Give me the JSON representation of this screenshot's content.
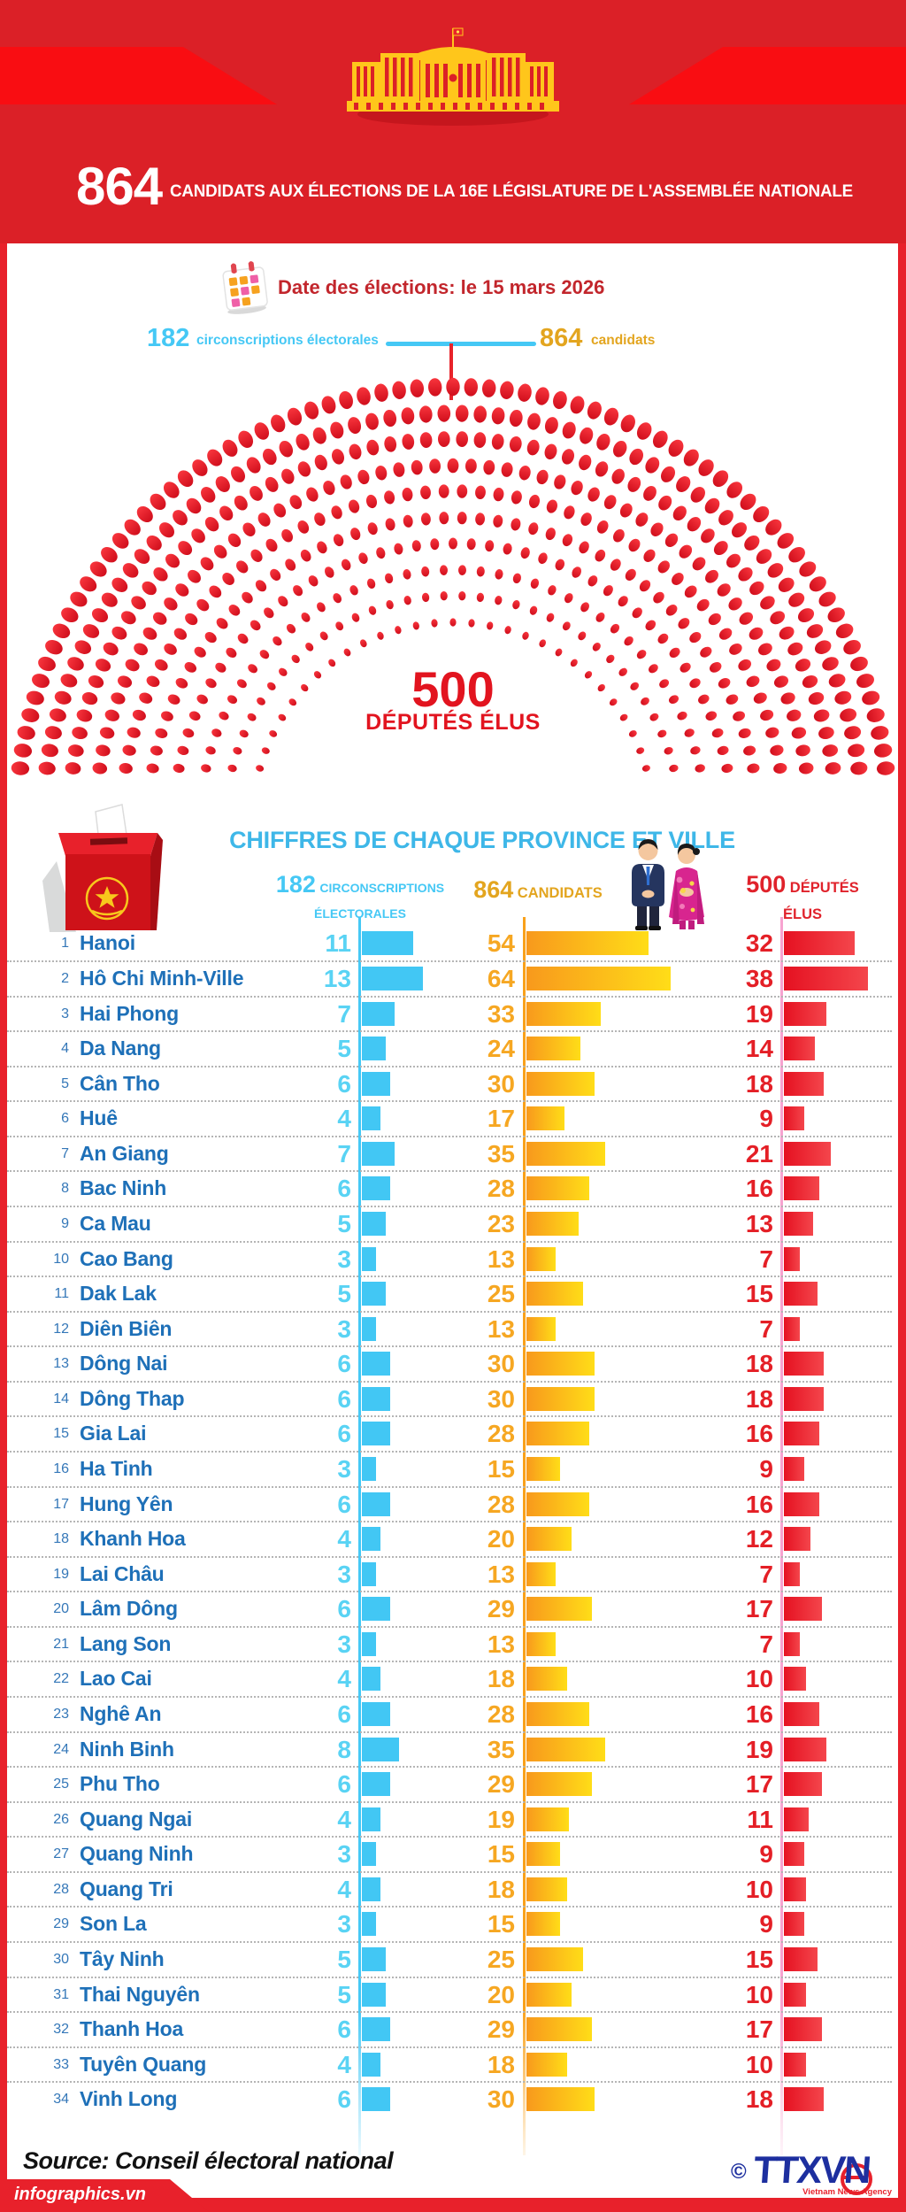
{
  "header": {
    "big_number": "864",
    "title": "CANDIDATS AUX ÉLECTIONS DE LA 16E LÉGISLATURE DE L'ASSEMBLÉE NATIONALE"
  },
  "election": {
    "date_label": "Date des élections: le 15 mars 2026",
    "left_value": "182",
    "left_label": "circonscriptions électorales",
    "right_value": "864",
    "right_label": "candidats"
  },
  "hemicycle_center": {
    "value": "500",
    "label": "DÉPUTÉS ÉLUS"
  },
  "province_section": {
    "title": "CHIFFRES DE CHAQUE PROVINCE ET VILLE",
    "col1_value": "182",
    "col1_label1": "CIRCONSCRIPTIONS",
    "col1_label2": "ÉLECTORALES",
    "col2_value": "864",
    "col2_label": "CANDIDATS",
    "col3_value": "500",
    "col3_label1": "DÉPUTÉS",
    "col3_label2": "ÉLUS"
  },
  "footer": {
    "source": "Source: Conseil électoral national",
    "site": "infographics.vn",
    "copyright": "©",
    "agency": "TTXVN",
    "agency_sub": "Vietnam News Agency"
  },
  "colors": {
    "header_red": "#DB2027",
    "stripe_red": "#F90D12",
    "accent_red": "#E8212B",
    "cyan": "#45C8F5",
    "gold": "#F6A722",
    "blue_text": "#1E70B8",
    "pink_axis": "#F7A3D0",
    "seat_red": "#E0151F"
  },
  "chart_data": [
    {
      "type": "parliament",
      "title": "500 DÉPUTÉS ÉLUS",
      "total_seats": 500,
      "rings": 10,
      "ring_seat_counts": [
        29,
        34,
        38,
        43,
        48,
        52,
        57,
        62,
        66,
        71
      ],
      "seat_color": "#E0151F",
      "legend_position": "center"
    },
    {
      "type": "bar-table",
      "title": "CHIFFRES DE CHAQUE PROVINCE ET VILLE",
      "categories": [
        "Hanoi",
        "Hô Chi Minh-Ville",
        "Hai Phong",
        "Da Nang",
        "Cân Tho",
        "Huê",
        "An Giang",
        "Bac Ninh",
        "Ca Mau",
        "Cao Bang",
        "Dak Lak",
        "Diên Biên",
        "Dông Nai",
        "Dông Thap",
        "Gia Lai",
        "Ha Tinh",
        "Hung Yên",
        "Khanh Hoa",
        "Lai Châu",
        "Lâm Dông",
        "Lang Son",
        "Lao Cai",
        "Nghê An",
        "Ninh Binh",
        "Phu Tho",
        "Quang Ngai",
        "Quang Ninh",
        "Quang Tri",
        "Son La",
        "Tây Ninh",
        "Thai Nguyên",
        "Thanh Hoa",
        "Tuyên Quang",
        "Vinh Long"
      ],
      "series": [
        {
          "name": "182 CIRCONSCRIPTIONS ÉLECTORALES",
          "color": "#42C7F4",
          "values": [
            11,
            13,
            7,
            5,
            6,
            4,
            7,
            6,
            5,
            3,
            5,
            3,
            6,
            6,
            6,
            3,
            6,
            4,
            3,
            6,
            3,
            4,
            6,
            8,
            6,
            4,
            3,
            4,
            3,
            5,
            5,
            6,
            4,
            6
          ]
        },
        {
          "name": "864 CANDIDATS",
          "color": "#F9A11B",
          "values": [
            54,
            64,
            33,
            24,
            30,
            17,
            35,
            28,
            23,
            13,
            25,
            13,
            30,
            30,
            28,
            15,
            28,
            20,
            13,
            29,
            13,
            18,
            28,
            35,
            29,
            19,
            15,
            18,
            15,
            25,
            20,
            29,
            18,
            30
          ]
        },
        {
          "name": "500 DÉPUTÉS ÉLUS",
          "color": "#E51121",
          "values": [
            32,
            38,
            19,
            14,
            18,
            9,
            21,
            16,
            13,
            7,
            15,
            7,
            18,
            18,
            16,
            9,
            16,
            12,
            7,
            17,
            7,
            10,
            16,
            19,
            17,
            11,
            9,
            10,
            9,
            15,
            10,
            17,
            10,
            18
          ]
        }
      ]
    }
  ]
}
